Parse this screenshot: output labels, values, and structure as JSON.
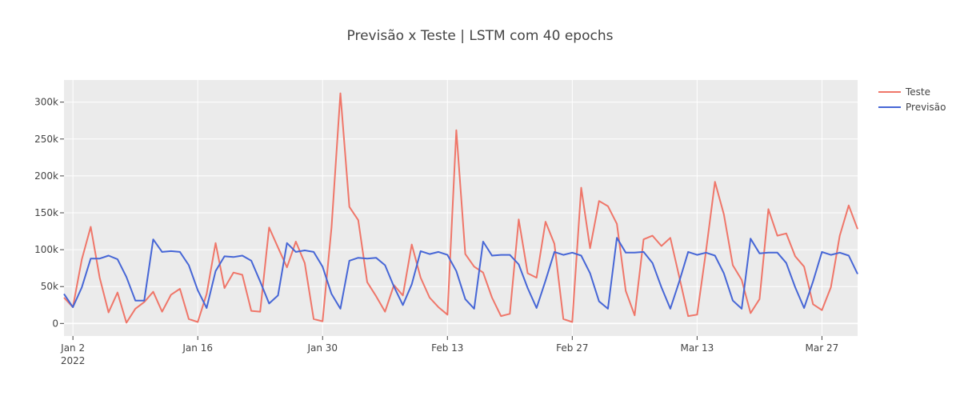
{
  "chart_data": {
    "type": "line",
    "title": "Previsão x Teste | LSTM com 40 epochs",
    "xlabel": "",
    "ylabel": "",
    "x_start": "2022-01-01",
    "x_end": "2022-03-31",
    "xlim": [
      "2022-01-01",
      "2022-03-31"
    ],
    "ylim": [
      -17000,
      330000
    ],
    "x_ticks": [
      {
        "date": "2022-01-02",
        "label": "Jan 2",
        "sublabel": "2022"
      },
      {
        "date": "2022-01-16",
        "label": "Jan 16",
        "sublabel": ""
      },
      {
        "date": "2022-01-30",
        "label": "Jan 30",
        "sublabel": ""
      },
      {
        "date": "2022-02-13",
        "label": "Feb 13",
        "sublabel": ""
      },
      {
        "date": "2022-02-27",
        "label": "Feb 27",
        "sublabel": ""
      },
      {
        "date": "2022-03-13",
        "label": "Mar 13",
        "sublabel": ""
      },
      {
        "date": "2022-03-27",
        "label": "Mar 27",
        "sublabel": ""
      }
    ],
    "y_ticks": [
      {
        "value": 0,
        "label": "0"
      },
      {
        "value": 50000,
        "label": "50k"
      },
      {
        "value": 100000,
        "label": "100k"
      },
      {
        "value": 150000,
        "label": "150k"
      },
      {
        "value": 200000,
        "label": "200k"
      },
      {
        "value": 250000,
        "label": "250k"
      },
      {
        "value": 300000,
        "label": "300k"
      }
    ],
    "grid": true,
    "legend_position": "top-right",
    "series": [
      {
        "name": "Teste",
        "color": "#ef7669",
        "values": [
          35000,
          22000,
          87000,
          131000,
          62000,
          15000,
          42000,
          1000,
          20000,
          29000,
          43000,
          16000,
          39000,
          47000,
          6000,
          2000,
          40000,
          109000,
          48000,
          69000,
          66000,
          17000,
          16000,
          130000,
          103000,
          76000,
          111000,
          82000,
          6000,
          3000,
          130000,
          312000,
          158000,
          140000,
          56000,
          37000,
          16000,
          52000,
          38000,
          107000,
          62000,
          35000,
          22000,
          12000,
          262000,
          94000,
          77000,
          69000,
          35000,
          10000,
          13000,
          141000,
          68000,
          62000,
          138000,
          108000,
          6000,
          2000,
          184000,
          102000,
          166000,
          159000,
          135000,
          44000,
          11000,
          114000,
          119000,
          105000,
          116000,
          63000,
          10000,
          12000,
          98000,
          192000,
          148000,
          79000,
          59000,
          14000,
          33000,
          155000,
          119000,
          122000,
          91000,
          77000,
          26000,
          18000,
          49000,
          119000,
          160000,
          128000
        ]
      },
      {
        "name": "Previsão",
        "color": "#4666d6",
        "values": [
          40000,
          22000,
          49000,
          88000,
          88000,
          92000,
          87000,
          63000,
          31000,
          31000,
          114000,
          97000,
          98000,
          97000,
          79000,
          45000,
          21000,
          71000,
          91000,
          90000,
          92000,
          85000,
          57000,
          27000,
          38000,
          109000,
          97000,
          99000,
          97000,
          77000,
          40000,
          20000,
          85000,
          89000,
          88000,
          89000,
          79000,
          50000,
          25000,
          53000,
          98000,
          94000,
          97000,
          93000,
          71000,
          33000,
          20000,
          111000,
          92000,
          93000,
          93000,
          80000,
          48000,
          21000,
          58000,
          97000,
          93000,
          96000,
          92000,
          68000,
          30000,
          20000,
          116000,
          96000,
          96000,
          97000,
          82000,
          49000,
          20000,
          57000,
          97000,
          93000,
          96000,
          92000,
          68000,
          31000,
          20000,
          115000,
          95000,
          96000,
          96000,
          82000,
          49000,
          21000,
          57000,
          97000,
          93000,
          96000,
          92000,
          67000
        ]
      }
    ]
  }
}
